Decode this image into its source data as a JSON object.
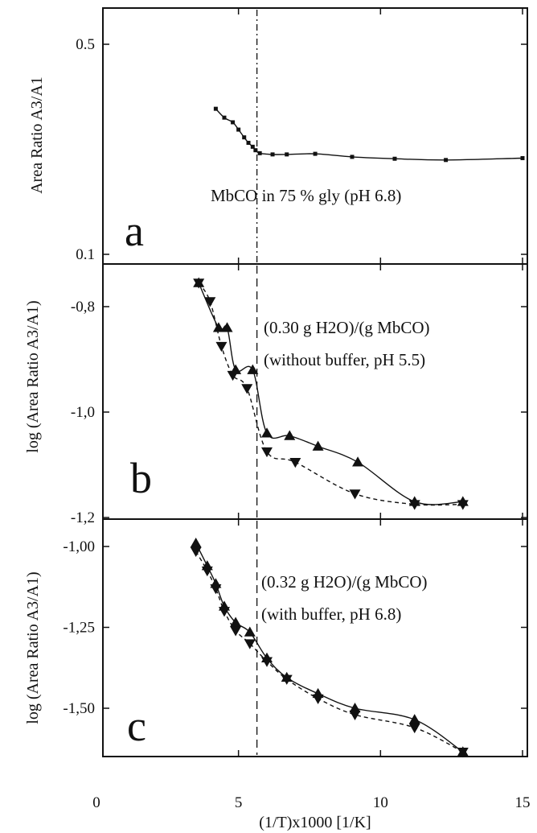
{
  "colors": {
    "ink": "#111111",
    "background": "#ffffff"
  },
  "chart_data": [
    {
      "panel": "a",
      "type": "line",
      "ylabel": "Area Ratio A3/A1",
      "yscale": "log",
      "ylim": [
        0.1,
        0.7
      ],
      "xlim": [
        0,
        15
      ],
      "yticks": [
        {
          "value": 0.5,
          "label": "0.5"
        },
        {
          "value": 0.1,
          "label": "0.1"
        }
      ],
      "annotation": "MbCO in 75 % gly (pH 6.8)",
      "series": [
        {
          "marker": "square",
          "line": "solid",
          "x": [
            4.2,
            4.5,
            4.8,
            5.0,
            5.2,
            5.35,
            5.5,
            5.6,
            5.75,
            6.2,
            6.7,
            7.7,
            9.0,
            10.5,
            12.3,
            15.0
          ],
          "y": [
            0.305,
            0.285,
            0.275,
            0.26,
            0.245,
            0.235,
            0.228,
            0.222,
            0.217,
            0.215,
            0.215,
            0.216,
            0.211,
            0.208,
            0.206,
            0.209
          ]
        }
      ],
      "vline_x": 5.65
    },
    {
      "panel": "b",
      "type": "scatter",
      "ylabel": "log (Area Ratio A3/A1)",
      "ylim": [
        -1.2,
        -0.7
      ],
      "xlim": [
        0,
        15
      ],
      "yticks": [
        {
          "value": -0.8,
          "label": "-0,8"
        },
        {
          "value": -1.0,
          "label": "-1,0"
        },
        {
          "value": -1.2,
          "label": "-1,2"
        }
      ],
      "annotation_lines": [
        "(0.30 g H2O)/(g MbCO)",
        "(without buffer, pH 5.5)"
      ],
      "series": [
        {
          "marker": "triangle-up",
          "line": "solid",
          "x": [
            3.6,
            4.3,
            4.6,
            4.9,
            5.5,
            6.0,
            6.8,
            7.8,
            9.2,
            11.2,
            12.9
          ],
          "y": [
            -0.755,
            -0.84,
            -0.84,
            -0.92,
            -0.92,
            -1.04,
            -1.045,
            -1.065,
            -1.095,
            -1.17,
            -1.17
          ]
        },
        {
          "marker": "triangle-down",
          "line": "dashed",
          "x": [
            3.6,
            4.0,
            4.4,
            4.8,
            5.3,
            6.0,
            7.0,
            9.1,
            11.2,
            12.9
          ],
          "y": [
            -0.755,
            -0.79,
            -0.875,
            -0.93,
            -0.955,
            -1.075,
            -1.095,
            -1.155,
            -1.175,
            -1.175
          ]
        }
      ],
      "vline_x": 5.65
    },
    {
      "panel": "c",
      "type": "scatter",
      "ylabel": "log (Area Ratio A3/A1)",
      "ylim": [
        -1.65,
        -0.97
      ],
      "xlim": [
        0,
        15
      ],
      "yticks": [
        {
          "value": -1.0,
          "label": "-1,00"
        },
        {
          "value": -1.25,
          "label": "-1,25"
        },
        {
          "value": -1.5,
          "label": "-1,50"
        }
      ],
      "xticks": [
        {
          "value": 0,
          "label": "0"
        },
        {
          "value": 5,
          "label": "5"
        },
        {
          "value": 10,
          "label": "10"
        },
        {
          "value": 15,
          "label": "15"
        }
      ],
      "xlabel": "(1/T)x1000 [1/K]",
      "annotation_lines": [
        "(0.32 g H2O)/(g MbCO)",
        "(with buffer, pH 6.8)"
      ],
      "series": [
        {
          "marker": "triangle-up",
          "line": "solid",
          "x": [
            3.5,
            3.9,
            4.2,
            4.5,
            4.9,
            5.4,
            6.0,
            6.7,
            7.8,
            9.1,
            11.2,
            12.9
          ],
          "y": [
            -0.99,
            -1.06,
            -1.115,
            -1.185,
            -1.235,
            -1.265,
            -1.345,
            -1.405,
            -1.455,
            -1.5,
            -1.535,
            -1.635
          ]
        },
        {
          "marker": "triangle-down",
          "line": "dashed",
          "x": [
            3.5,
            3.9,
            4.2,
            4.5,
            4.9,
            5.4,
            6.0,
            6.7,
            7.8,
            9.1,
            11.2,
            12.9
          ],
          "y": [
            -1.015,
            -1.075,
            -1.13,
            -1.2,
            -1.26,
            -1.3,
            -1.355,
            -1.41,
            -1.47,
            -1.52,
            -1.56,
            -1.635
          ]
        }
      ],
      "vline_x": 5.65
    }
  ]
}
